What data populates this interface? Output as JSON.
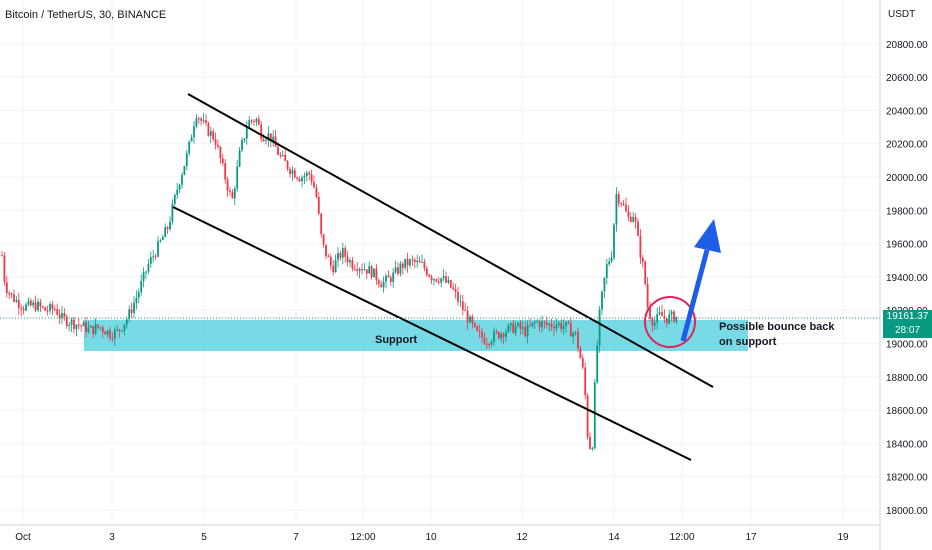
{
  "title": "Bitcoin / TetherUS, 30, BINANCE",
  "price_tag": {
    "price": "19161.37",
    "countdown": "28:07",
    "color": "#089981"
  },
  "colors": {
    "up": "#089981",
    "down": "#f23645",
    "support": "#5fd3e0",
    "arrow": "#1e5ee6",
    "circle": "#e0245e",
    "channel": "#000000"
  },
  "chart_data": {
    "type": "candlestick",
    "title": "Bitcoin / TetherUS, 30, BINANCE",
    "ylabel": "USDT",
    "ylim": [
      17950,
      21000
    ],
    "y_ticks": [
      "20800.00",
      "20600.00",
      "20400.00",
      "20200.00",
      "20000.00",
      "19800.00",
      "19600.00",
      "19400.00",
      "19200.00",
      "19000.00",
      "18800.00",
      "18600.00",
      "18400.00",
      "18200.00",
      "18000.00"
    ],
    "x_ticks": [
      "Oct",
      "3",
      "5",
      "7",
      "12:00",
      "10",
      "12",
      "14",
      "12:00",
      "17",
      "19"
    ],
    "last_price": 19161.37,
    "price_path": [
      [
        0,
        19650
      ],
      [
        5,
        19350
      ],
      [
        12,
        19280
      ],
      [
        24,
        19220
      ],
      [
        36,
        19230
      ],
      [
        45,
        19200
      ],
      [
        55,
        19210
      ],
      [
        62,
        19150
      ],
      [
        70,
        19130
      ],
      [
        80,
        19110
      ],
      [
        90,
        19080
      ],
      [
        100,
        19100
      ],
      [
        110,
        19060
      ],
      [
        118,
        19070
      ],
      [
        128,
        19160
      ],
      [
        138,
        19300
      ],
      [
        148,
        19470
      ],
      [
        158,
        19580
      ],
      [
        168,
        19700
      ],
      [
        178,
        19950
      ],
      [
        188,
        20150
      ],
      [
        196,
        20390
      ],
      [
        205,
        20300
      ],
      [
        215,
        20230
      ],
      [
        225,
        20000
      ],
      [
        232,
        19850
      ],
      [
        240,
        20150
      ],
      [
        248,
        20330
      ],
      [
        256,
        20350
      ],
      [
        262,
        20250
      ],
      [
        270,
        20250
      ],
      [
        280,
        20120
      ],
      [
        290,
        20050
      ],
      [
        300,
        20000
      ],
      [
        310,
        20020
      ],
      [
        316,
        19900
      ],
      [
        322,
        19600
      ],
      [
        332,
        19450
      ],
      [
        342,
        19550
      ],
      [
        352,
        19480
      ],
      [
        362,
        19460
      ],
      [
        372,
        19430
      ],
      [
        382,
        19360
      ],
      [
        392,
        19400
      ],
      [
        402,
        19470
      ],
      [
        412,
        19490
      ],
      [
        422,
        19470
      ],
      [
        432,
        19400
      ],
      [
        442,
        19390
      ],
      [
        452,
        19330
      ],
      [
        460,
        19240
      ],
      [
        468,
        19150
      ],
      [
        476,
        19060
      ],
      [
        486,
        19020
      ],
      [
        496,
        19050
      ],
      [
        506,
        19080
      ],
      [
        516,
        19100
      ],
      [
        526,
        19070
      ],
      [
        536,
        19130
      ],
      [
        546,
        19110
      ],
      [
        556,
        19120
      ],
      [
        566,
        19100
      ],
      [
        576,
        19050
      ],
      [
        584,
        18800
      ],
      [
        588,
        18420
      ],
      [
        592,
        18350
      ],
      [
        596,
        18900
      ],
      [
        600,
        19200
      ],
      [
        606,
        19450
      ],
      [
        612,
        19550
      ],
      [
        616,
        19900
      ],
      [
        622,
        19850
      ],
      [
        628,
        19750
      ],
      [
        634,
        19780
      ],
      [
        638,
        19620
      ],
      [
        644,
        19430
      ],
      [
        648,
        19200
      ],
      [
        654,
        19120
      ],
      [
        660,
        19170
      ],
      [
        666,
        19150
      ],
      [
        672,
        19160
      ],
      [
        677,
        19161
      ]
    ],
    "annotations": [
      {
        "text": "Support",
        "type": "zone",
        "from": 18950,
        "to": 19130
      },
      {
        "text": "Possible bounce back",
        "line2": "on support",
        "type": "label"
      }
    ]
  }
}
